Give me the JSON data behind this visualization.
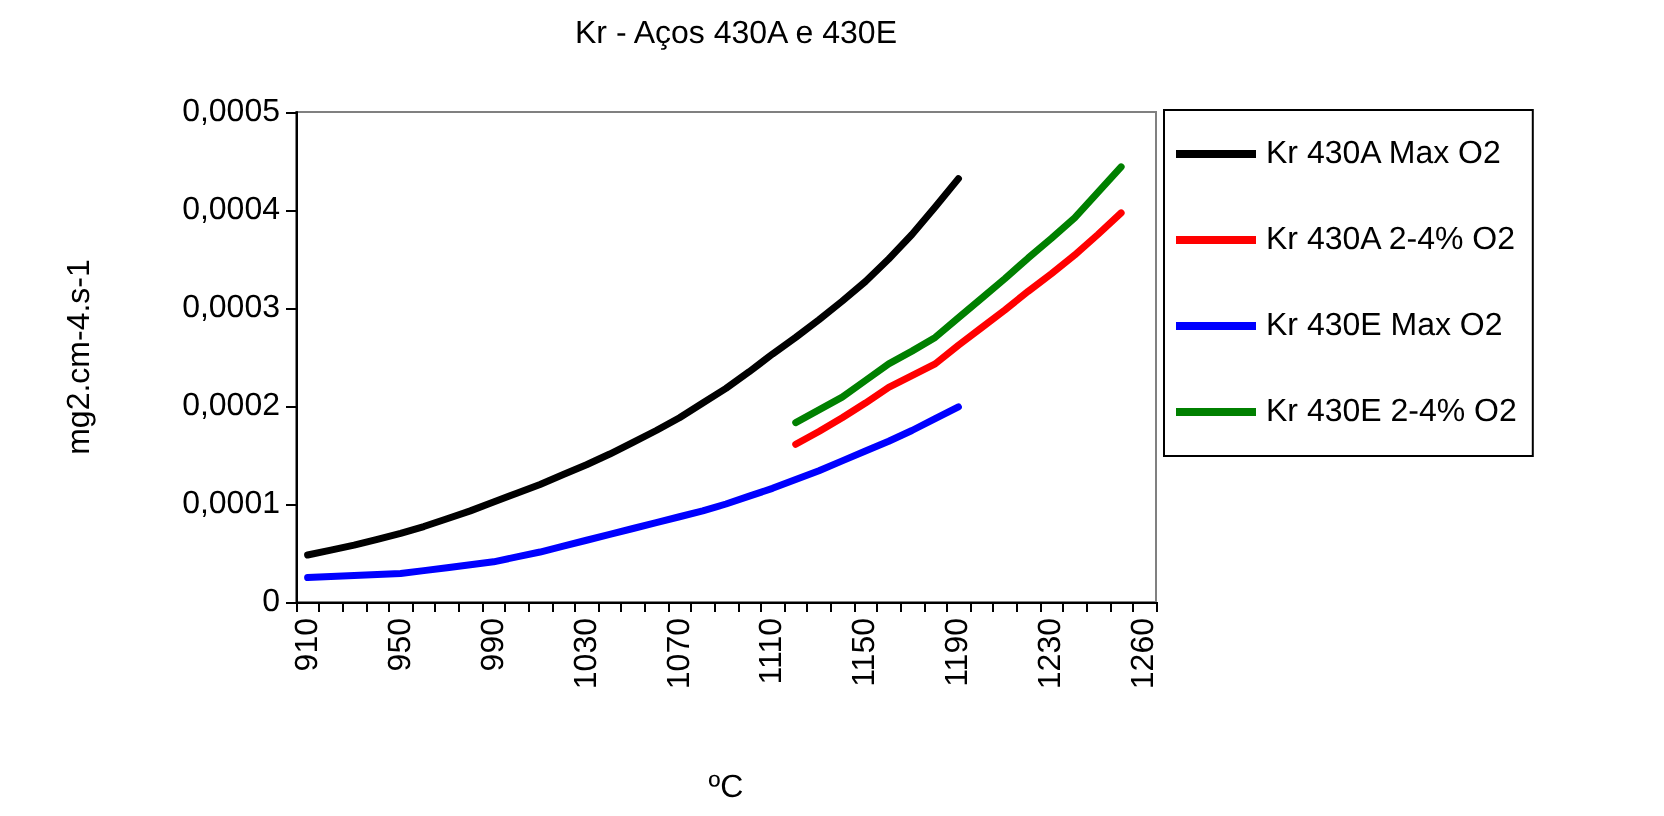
{
  "chart_data": {
    "type": "line",
    "title": "Kr - Aços 430A e 430E",
    "xlabel": "ºC",
    "ylabel": "mg2.cm-4.s-1",
    "categories": [
      "910",
      null,
      null,
      null,
      "950",
      null,
      null,
      null,
      "990",
      null,
      null,
      null,
      "1030",
      null,
      null,
      null,
      "1070",
      null,
      null,
      null,
      "1110",
      null,
      null,
      null,
      "1150",
      null,
      null,
      null,
      "1190",
      null,
      null,
      null,
      "1230",
      null,
      null,
      null,
      "1260"
    ],
    "series": [
      {
        "name": "Kr 430A Max O2",
        "color": "#000000",
        "values": [
          4.8e-05,
          5.3e-05,
          5.8e-05,
          6.4e-05,
          7e-05,
          7.7e-05,
          8.5e-05,
          9.3e-05,
          0.000102,
          0.000111,
          0.00012,
          0.00013,
          0.00014,
          0.000151,
          0.000163,
          0.000175,
          0.000188,
          0.000203,
          0.000218,
          0.000235,
          0.000253,
          0.00027,
          0.000288,
          0.000307,
          0.000327,
          0.00035,
          0.000375,
          0.000403,
          0.000432,
          null,
          null,
          null,
          null,
          null,
          null,
          null,
          null
        ]
      },
      {
        "name": "Kr 430A 2-4% O2",
        "color": "#ff0000",
        "values": [
          null,
          null,
          null,
          null,
          null,
          null,
          null,
          null,
          null,
          null,
          null,
          null,
          null,
          null,
          null,
          null,
          null,
          null,
          null,
          null,
          null,
          0.000161,
          0.000174,
          0.000188,
          0.000203,
          0.000219,
          0.000231,
          0.000243,
          0.000262,
          0.00028,
          0.000298,
          0.000317,
          0.000335,
          0.000354,
          0.000375,
          0.000397,
          null
        ]
      },
      {
        "name": "Kr 430E Max O2",
        "color": "#0000ff",
        "values": [
          2.5e-05,
          2.6e-05,
          2.7e-05,
          2.8e-05,
          2.9e-05,
          3.2e-05,
          3.5e-05,
          3.8e-05,
          4.1e-05,
          4.6e-05,
          5.1e-05,
          5.7e-05,
          6.3e-05,
          6.9e-05,
          7.5e-05,
          8.1e-05,
          8.7e-05,
          9.3e-05,
          0.0001,
          0.000108,
          0.000116,
          0.000125,
          0.000134,
          0.000144,
          0.000154,
          0.000164,
          0.000175,
          0.000187,
          0.000199,
          null,
          null,
          null,
          null,
          null,
          null,
          null,
          null
        ]
      },
      {
        "name": "Kr 430E 2-4% O2",
        "color": "#008000",
        "values": [
          null,
          null,
          null,
          null,
          null,
          null,
          null,
          null,
          null,
          null,
          null,
          null,
          null,
          null,
          null,
          null,
          null,
          null,
          null,
          null,
          null,
          0.000183,
          0.000196,
          0.000209,
          0.000226,
          0.000243,
          0.000256,
          0.00027,
          0.00029,
          0.00031,
          0.00033,
          0.000351,
          0.000371,
          0.000392,
          0.000418,
          0.000444,
          null
        ]
      }
    ],
    "ylim": [
      0,
      0.0005
    ],
    "yticks": [
      {
        "value": 0,
        "label": "0"
      },
      {
        "value": 0.0001,
        "label": "0,0001"
      },
      {
        "value": 0.0002,
        "label": "0,0002"
      },
      {
        "value": 0.0003,
        "label": "0,0003"
      },
      {
        "value": 0.0004,
        "label": "0,0004"
      },
      {
        "value": 0.0005,
        "label": "0,0005"
      }
    ],
    "grid": false,
    "legend": "right",
    "marker": "none",
    "line_style": "solid"
  }
}
